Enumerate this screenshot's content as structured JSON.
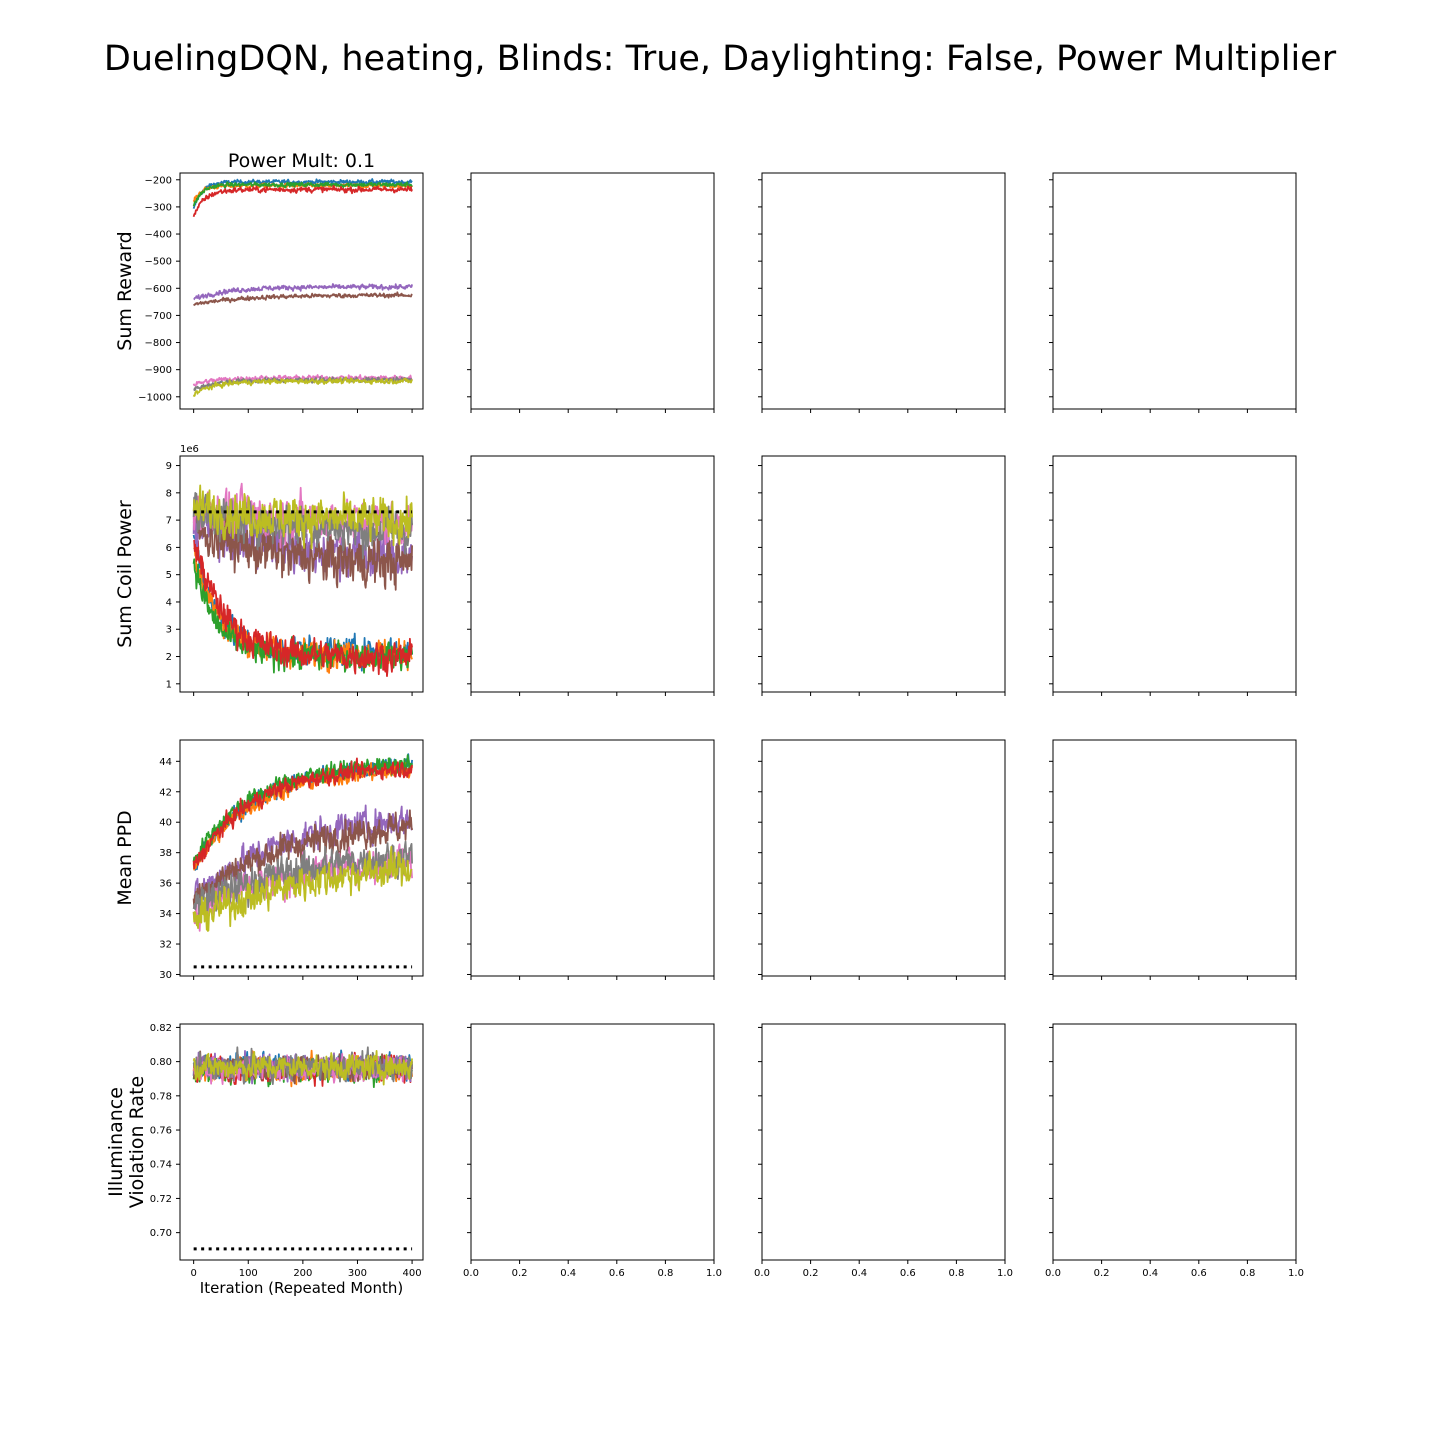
{
  "figure": {
    "title": "DuelingDQN, heating, Blinds: True, Daylighting: False, Power Multiplier"
  },
  "chart_data": [
    {
      "type": "line",
      "panel_title": "Power Mult: 0.1",
      "ylabel": "Sum Reward",
      "ylim": [
        -1045,
        -175
      ],
      "yticks": [
        -200,
        -300,
        -400,
        -500,
        -600,
        -700,
        -800,
        -900,
        -1000
      ],
      "ytick_labels": [
        "−200",
        "−300",
        "−400",
        "−500",
        "−600",
        "−700",
        "−800",
        "−900",
        "−1000"
      ],
      "xlim": [
        -25,
        420
      ],
      "xticks": [
        0,
        100,
        200,
        300,
        400
      ],
      "x_range": [
        0,
        400
      ],
      "series": [
        {
          "color": "#1f77b4",
          "start": -310,
          "level": -208,
          "tau": 15,
          "noise": 7
        },
        {
          "color": "#ff7f0e",
          "start": -280,
          "level": -222,
          "tau": 15,
          "noise": 7
        },
        {
          "color": "#2ca02c",
          "start": -300,
          "level": -218,
          "tau": 15,
          "noise": 7
        },
        {
          "color": "#d62728",
          "start": -335,
          "level": -236,
          "tau": 20,
          "noise": 9
        },
        {
          "color": "#9467bd",
          "start": -640,
          "level": -595,
          "tau": 60,
          "noise": 8
        },
        {
          "color": "#8c564b",
          "start": -660,
          "level": -625,
          "tau": 90,
          "noise": 7
        },
        {
          "color": "#e377c2",
          "start": -955,
          "level": -930,
          "tau": 40,
          "noise": 8
        },
        {
          "color": "#7f7f7f",
          "start": -975,
          "level": -938,
          "tau": 40,
          "noise": 8
        },
        {
          "color": "#bcbd22",
          "start": -990,
          "level": -942,
          "tau": 40,
          "noise": 8
        }
      ]
    },
    {
      "type": "line",
      "ylabel": "Sum Coil Power",
      "offset_label": "1e6",
      "ylim": [
        0.7,
        9.35
      ],
      "yticks": [
        1,
        2,
        3,
        4,
        5,
        6,
        7,
        8,
        9
      ],
      "ytick_labels": [
        "1",
        "2",
        "3",
        "4",
        "5",
        "6",
        "7",
        "8",
        "9"
      ],
      "xlim": [
        -25,
        420
      ],
      "xticks": [
        0,
        100,
        200,
        300,
        400
      ],
      "x_range": [
        0,
        400
      ],
      "baseline": 7.3,
      "series": [
        {
          "color": "#1f77b4",
          "start": 6.5,
          "level": 2.2,
          "tau": 40,
          "noise": 0.45
        },
        {
          "color": "#ff7f0e",
          "start": 6.0,
          "level": 2.1,
          "tau": 45,
          "noise": 0.45
        },
        {
          "color": "#2ca02c",
          "start": 5.5,
          "level": 2.0,
          "tau": 40,
          "noise": 0.45
        },
        {
          "color": "#d62728",
          "start": 6.3,
          "level": 2.0,
          "tau": 55,
          "noise": 0.5
        },
        {
          "color": "#9467bd",
          "start": 7.0,
          "level": 5.6,
          "tau": 150,
          "noise": 0.8
        },
        {
          "color": "#8c564b",
          "start": 6.8,
          "level": 5.4,
          "tau": 120,
          "noise": 0.8
        },
        {
          "color": "#e377c2",
          "start": 7.5,
          "level": 6.8,
          "tau": 200,
          "noise": 0.7
        },
        {
          "color": "#7f7f7f",
          "start": 7.3,
          "level": 6.5,
          "tau": 200,
          "noise": 0.7
        },
        {
          "color": "#bcbd22",
          "start": 7.4,
          "level": 6.9,
          "tau": 200,
          "noise": 0.7
        }
      ]
    },
    {
      "type": "line",
      "ylabel": "Mean PPD",
      "ylim": [
        29.9,
        45.4
      ],
      "yticks": [
        30,
        32,
        34,
        36,
        38,
        40,
        42,
        44
      ],
      "ytick_labels": [
        "30",
        "32",
        "34",
        "36",
        "38",
        "40",
        "42",
        "44"
      ],
      "xlim": [
        -25,
        420
      ],
      "xticks": [
        0,
        100,
        200,
        300,
        400
      ],
      "x_range": [
        0,
        400
      ],
      "baseline": 30.5,
      "series": [
        {
          "color": "#1f77b4",
          "start": 37.0,
          "level": 43.9,
          "tau": 110,
          "noise": 0.5
        },
        {
          "color": "#ff7f0e",
          "start": 37.0,
          "level": 43.6,
          "tau": 110,
          "noise": 0.5
        },
        {
          "color": "#2ca02c",
          "start": 37.5,
          "level": 43.9,
          "tau": 105,
          "noise": 0.5
        },
        {
          "color": "#d62728",
          "start": 37.0,
          "level": 43.7,
          "tau": 105,
          "noise": 0.5
        },
        {
          "color": "#9467bd",
          "start": 35.0,
          "level": 40.6,
          "tau": 160,
          "noise": 0.9
        },
        {
          "color": "#8c564b",
          "start": 35.0,
          "level": 40.2,
          "tau": 170,
          "noise": 0.9
        },
        {
          "color": "#e377c2",
          "start": 34.0,
          "level": 38.0,
          "tau": 200,
          "noise": 1.0
        },
        {
          "color": "#7f7f7f",
          "start": 34.5,
          "level": 38.3,
          "tau": 200,
          "noise": 1.0
        },
        {
          "color": "#bcbd22",
          "start": 33.5,
          "level": 37.6,
          "tau": 210,
          "noise": 1.0
        }
      ]
    },
    {
      "type": "line",
      "ylabel_lines": [
        "Illuminance",
        "Violation Rate"
      ],
      "xlabel": "Iteration (Repeated Month)",
      "ylim": [
        0.684,
        0.822
      ],
      "yticks": [
        0.7,
        0.72,
        0.74,
        0.76,
        0.78,
        0.8,
        0.82
      ],
      "ytick_labels": [
        "0.70",
        "0.72",
        "0.74",
        "0.76",
        "0.78",
        "0.80",
        "0.82"
      ],
      "xlim": [
        -25,
        420
      ],
      "xticks": [
        0,
        100,
        200,
        300,
        400
      ],
      "xtick_labels": [
        "0",
        "100",
        "200",
        "300",
        "400"
      ],
      "x_range": [
        0,
        400
      ],
      "baseline": 0.6905,
      "series": [
        {
          "color": "#1f77b4",
          "start": 0.797,
          "level": 0.797,
          "tau": 10,
          "noise": 0.0065
        },
        {
          "color": "#ff7f0e",
          "start": 0.796,
          "level": 0.796,
          "tau": 10,
          "noise": 0.0065
        },
        {
          "color": "#2ca02c",
          "start": 0.795,
          "level": 0.795,
          "tau": 10,
          "noise": 0.0065
        },
        {
          "color": "#d62728",
          "start": 0.796,
          "level": 0.796,
          "tau": 10,
          "noise": 0.0065
        },
        {
          "color": "#9467bd",
          "start": 0.797,
          "level": 0.797,
          "tau": 10,
          "noise": 0.0065
        },
        {
          "color": "#8c564b",
          "start": 0.796,
          "level": 0.796,
          "tau": 10,
          "noise": 0.0065
        },
        {
          "color": "#e377c2",
          "start": 0.796,
          "level": 0.796,
          "tau": 10,
          "noise": 0.0065
        },
        {
          "color": "#7f7f7f",
          "start": 0.797,
          "level": 0.797,
          "tau": 10,
          "noise": 0.0065
        },
        {
          "color": "#bcbd22",
          "start": 0.797,
          "level": 0.797,
          "tau": 10,
          "noise": 0.0065
        }
      ]
    }
  ],
  "empty_axes": {
    "xticks": [
      0.0,
      0.2,
      0.4,
      0.6,
      0.8,
      1.0
    ],
    "xtick_labels": [
      "0.0",
      "0.2",
      "0.4",
      "0.6",
      "0.8",
      "1.0"
    ]
  }
}
